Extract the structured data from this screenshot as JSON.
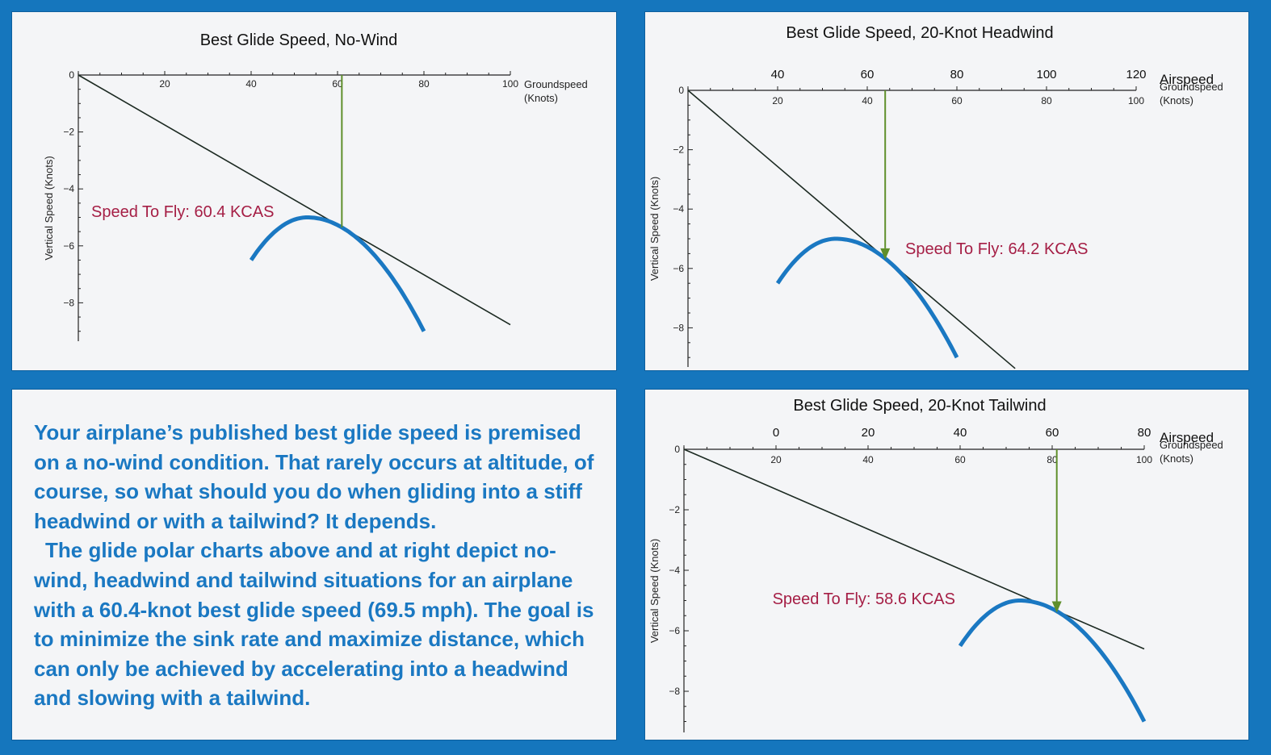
{
  "colors": {
    "background": "#1576bd",
    "panel": "#f4f5f7",
    "curve": "#1a78c2",
    "tangent": "#1c2a22",
    "arrow": "#5f8f2b",
    "label": "#a51e45",
    "body_text": "#1a78c2"
  },
  "charts": [
    {
      "key": "nowind",
      "title": "Best Glide Speed, No-Wind",
      "x_ticks": [
        "20",
        "40",
        "60",
        "80",
        "100"
      ],
      "x_label": [
        "Groundspeed",
        "(Knots)"
      ],
      "airspeed_ticks": [],
      "airspeed_label": "",
      "y_ticks": [
        "0",
        "−2",
        "−4",
        "−6",
        "−8"
      ],
      "y_label": "Vertical Speed (Knots)",
      "annotation": "Speed To Fly: 60.4 KCAS"
    },
    {
      "key": "headwind",
      "title": "Best Glide Speed, 20-Knot Headwind",
      "x_ticks": [
        "20",
        "40",
        "60",
        "80",
        "100"
      ],
      "x_label": [
        "Groundspeed",
        "(Knots)"
      ],
      "airspeed_ticks": [
        "40",
        "60",
        "80",
        "100",
        "120"
      ],
      "airspeed_label": "Airspeed",
      "y_ticks": [
        "0",
        "−2",
        "−4",
        "−6",
        "−8"
      ],
      "y_label": "Vertical Speed (Knots)",
      "annotation": "Speed To Fly: 64.2 KCAS"
    },
    {
      "key": "tailwind",
      "title": "Best Glide Speed, 20-Knot Tailwind",
      "x_ticks": [
        "20",
        "40",
        "60",
        "80",
        "100"
      ],
      "x_label": [
        "Groundspeed",
        "(Knots)"
      ],
      "airspeed_ticks": [
        "0",
        "20",
        "40",
        "60",
        "80"
      ],
      "airspeed_label": "Airspeed",
      "y_ticks": [
        "0",
        "−2",
        "−4",
        "−6",
        "−8"
      ],
      "y_label": "Vertical Speed (Knots)",
      "annotation": "Speed To Fly: 58.6 KCAS"
    }
  ],
  "chart_data": [
    {
      "type": "line",
      "title": "Best Glide Speed, No-Wind",
      "xlabel": "Groundspeed (Knots)",
      "ylabel": "Vertical Speed (Knots)",
      "xlim": [
        0,
        100
      ],
      "ylim": [
        -9.4,
        0
      ],
      "series": [
        {
          "x": [
            40,
            45,
            50,
            53,
            55,
            60,
            65,
            70,
            75,
            80
          ],
          "y": [
            -6.5,
            -5.47,
            -5.08,
            -5.0,
            -5.02,
            -5.29,
            -5.84,
            -6.67,
            -7.78,
            -9.0
          ]
        },
        {
          "x": [
            0,
            100
          ],
          "y": [
            0,
            -8.77
          ]
        }
      ],
      "speed_to_fly": 60.4,
      "annotation": "Speed To Fly: 60.4 KCAS"
    },
    {
      "type": "line",
      "title": "Best Glide Speed, 20-Knot Headwind",
      "xlabel": "Groundspeed (Knots)",
      "ylabel": "Vertical Speed (Knots)",
      "xlim": [
        0,
        100
      ],
      "ylim": [
        -9.4,
        0
      ],
      "airspeed_axis": {
        "label": "Airspeed",
        "ticks": [
          40,
          60,
          80,
          100,
          120
        ]
      },
      "series": [
        {
          "x": [
            20,
            25,
            30,
            33,
            35,
            40,
            45,
            50,
            55,
            60
          ],
          "y": [
            -6.5,
            -5.47,
            -5.08,
            -5.0,
            -5.02,
            -5.29,
            -5.84,
            -6.67,
            -7.78,
            -9.0
          ]
        },
        {
          "x": [
            0,
            73
          ],
          "y": [
            0,
            -9.37
          ]
        }
      ],
      "speed_to_fly": 64.2,
      "annotation": "Speed To Fly: 64.2 KCAS"
    },
    {
      "type": "line",
      "title": "Best Glide Speed, 20-Knot Tailwind",
      "xlabel": "Groundspeed (Knots)",
      "ylabel": "Vertical Speed (Knots)",
      "xlim": [
        0,
        100
      ],
      "ylim": [
        -9.4,
        0
      ],
      "airspeed_axis": {
        "label": "Airspeed",
        "ticks": [
          0,
          20,
          40,
          60,
          80
        ]
      },
      "series": [
        {
          "x": [
            60,
            65,
            70,
            73,
            75,
            80,
            85,
            90,
            95,
            100
          ],
          "y": [
            -6.5,
            -5.47,
            -5.08,
            -5.0,
            -5.02,
            -5.29,
            -5.84,
            -6.67,
            -7.78,
            -9.0
          ]
        },
        {
          "x": [
            0,
            100
          ],
          "y": [
            0,
            -6.6
          ]
        }
      ],
      "speed_to_fly": 58.6,
      "annotation": "Speed To Fly: 58.6 KCAS"
    }
  ],
  "text_panel": {
    "paragraph1": "Your airplane’s published best glide speed is premised on a no-wind condition. That rarely occurs at altitude, of course, so what should you do when gliding into a stiff headwind or with a tailwind? It depends.",
    "paragraph2": "The glide polar charts above and at right depict no-wind, headwind and tailwind situations for an airplane with a 60.4-knot best glide speed (69.5 mph). The goal is to minimize the sink rate and maximize distance, which can only be achieved by accelerating into a headwind and slowing with a tailwind."
  }
}
